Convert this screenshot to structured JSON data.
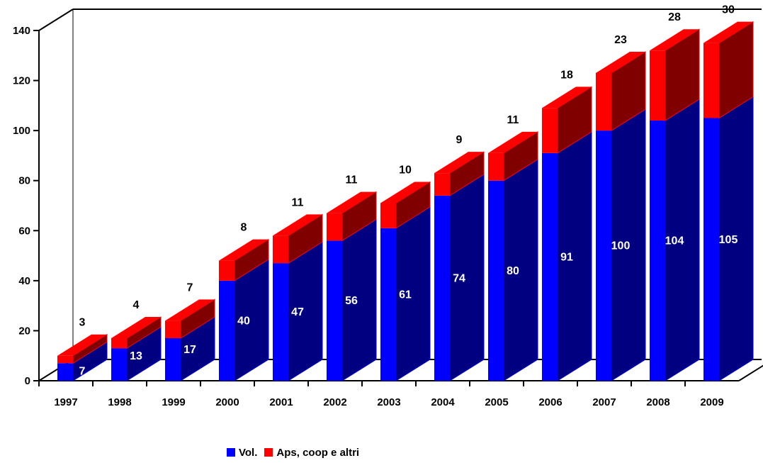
{
  "chart_data": {
    "type": "bar",
    "stacked": true,
    "three_d": true,
    "title": "",
    "xlabel": "",
    "ylabel": "",
    "ylim": [
      0,
      140
    ],
    "yticks": [
      0,
      20,
      40,
      60,
      80,
      100,
      120,
      140
    ],
    "categories": [
      "1997",
      "1998",
      "1999",
      "2000",
      "2001",
      "2002",
      "2003",
      "2004",
      "2005",
      "2006",
      "2007",
      "2008",
      "2009"
    ],
    "series": [
      {
        "name": "Vol.",
        "color": "#0000ff",
        "side_color": "#000080",
        "values": [
          7,
          13,
          17,
          40,
          47,
          56,
          61,
          74,
          80,
          91,
          100,
          104,
          105
        ]
      },
      {
        "name": "Aps, coop e altri",
        "color": "#ff0000",
        "side_color": "#800000",
        "values": [
          3,
          4,
          7,
          8,
          11,
          11,
          10,
          9,
          11,
          18,
          23,
          28,
          30
        ]
      }
    ],
    "legend_position": "bottom-center",
    "grid": false
  }
}
